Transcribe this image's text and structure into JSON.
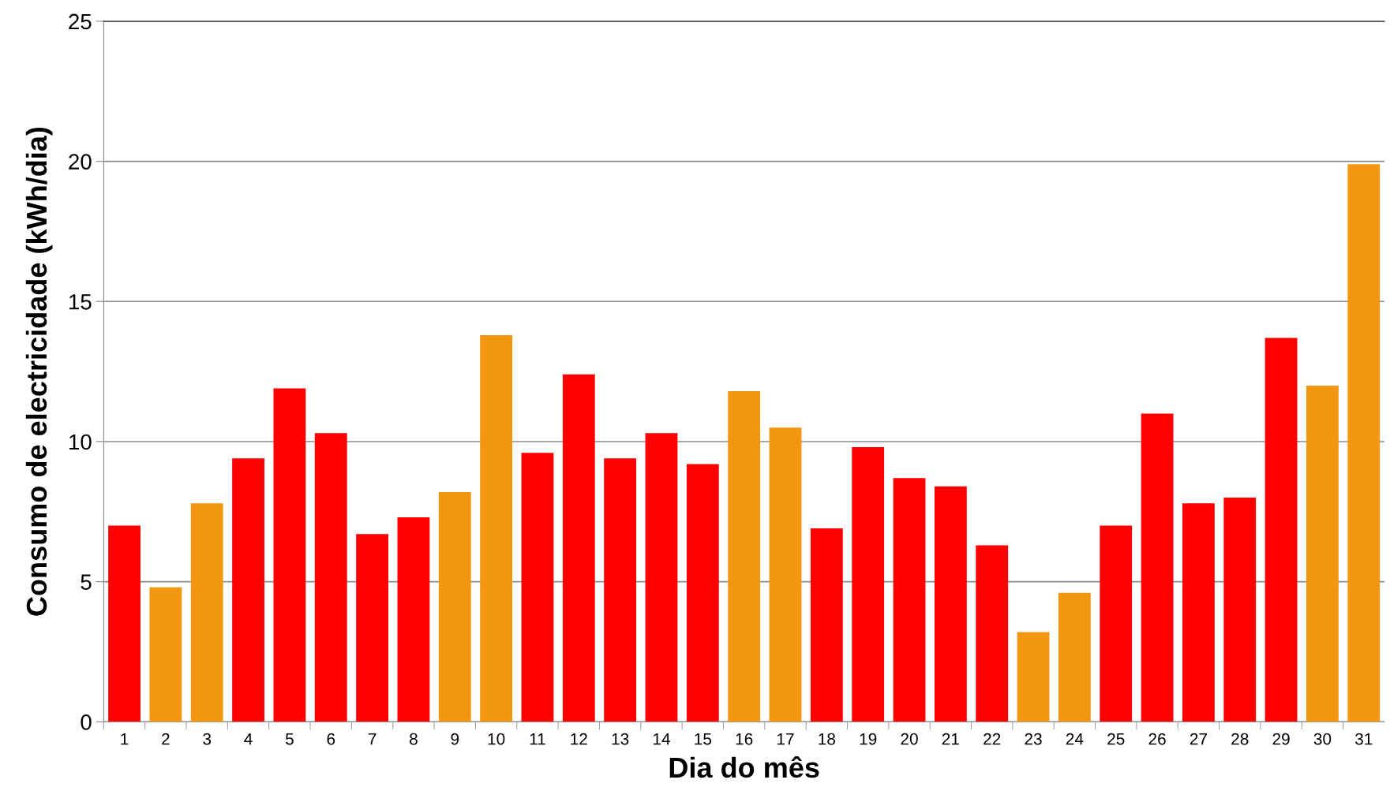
{
  "chart_data": {
    "type": "bar",
    "xlabel": "Dia do mês",
    "ylabel": "Consumo de electricidade (kWh/dia)",
    "categories": [
      "1",
      "2",
      "3",
      "4",
      "5",
      "6",
      "7",
      "8",
      "9",
      "10",
      "11",
      "12",
      "13",
      "14",
      "15",
      "16",
      "17",
      "18",
      "19",
      "20",
      "21",
      "22",
      "23",
      "24",
      "25",
      "26",
      "27",
      "28",
      "29",
      "30",
      "31"
    ],
    "values": [
      7.0,
      4.8,
      7.8,
      9.4,
      11.9,
      10.3,
      6.7,
      7.3,
      8.2,
      13.8,
      9.6,
      12.4,
      9.4,
      10.3,
      9.2,
      11.8,
      10.5,
      6.9,
      9.8,
      8.7,
      8.4,
      6.3,
      3.2,
      4.6,
      7.0,
      11.0,
      7.8,
      8.0,
      13.7,
      12.0,
      19.9
    ],
    "colors": [
      "#ff0000",
      "#f39712",
      "#f39712",
      "#ff0000",
      "#ff0000",
      "#ff0000",
      "#ff0000",
      "#ff0000",
      "#f39712",
      "#f39712",
      "#ff0000",
      "#ff0000",
      "#ff0000",
      "#ff0000",
      "#ff0000",
      "#f39712",
      "#f39712",
      "#ff0000",
      "#ff0000",
      "#ff0000",
      "#ff0000",
      "#ff0000",
      "#f39712",
      "#f39712",
      "#ff0000",
      "#ff0000",
      "#ff0000",
      "#ff0000",
      "#ff0000",
      "#f39712",
      "#f39712"
    ],
    "ylim": [
      0,
      25
    ],
    "yticks": [
      0,
      5,
      10,
      15,
      20,
      25
    ],
    "grid": "y",
    "legend": false
  }
}
